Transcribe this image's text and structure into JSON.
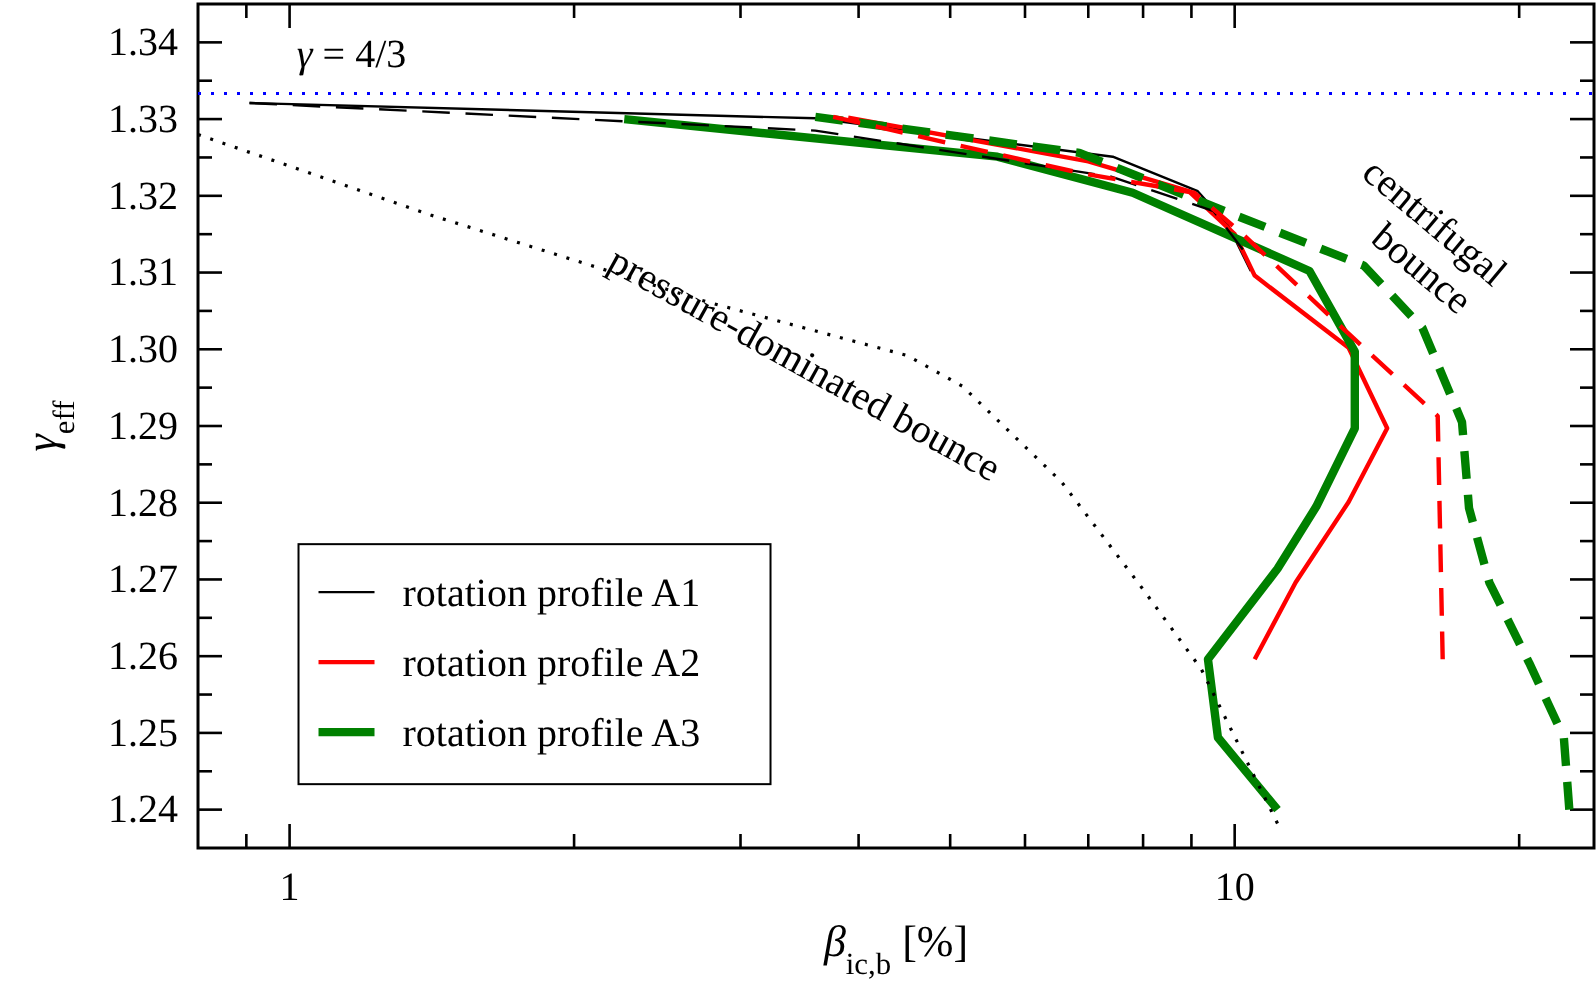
{
  "chart_data": {
    "type": "line",
    "xlabel": "β$_{ic,b}$ [%]",
    "ylabel": "γ$_{eff}$",
    "log": "x",
    "grid": false,
    "legend": "bottom left",
    "marker": "none",
    "xlim": [
      0.8,
      24
    ],
    "ylim": [
      1.235,
      1.345
    ],
    "xticks": [
      {
        "value": 0.9,
        "label": null
      },
      1,
      {
        "value": 2,
        "label": null
      },
      {
        "value": 3,
        "label": null
      },
      {
        "value": 4,
        "label": null
      },
      {
        "value": 5,
        "label": null
      },
      {
        "value": 6,
        "label": null
      },
      {
        "value": 7,
        "label": null
      },
      {
        "value": 8,
        "label": null
      },
      {
        "value": 9,
        "label": null
      },
      10,
      {
        "value": 20,
        "label": null
      }
    ],
    "yticks": [
      1.24,
      {
        "value": 1.245,
        "label": null
      },
      1.25,
      {
        "value": 1.255,
        "label": null
      },
      1.26,
      {
        "value": 1.265,
        "label": null
      },
      1.27,
      {
        "value": 1.275,
        "label": null
      },
      1.28,
      {
        "value": 1.285,
        "label": null
      },
      1.29,
      {
        "value": 1.295,
        "label": null
      },
      "1.30",
      {
        "value": 1.305,
        "label": null
      },
      1.31,
      {
        "value": 1.315,
        "label": null
      },
      1.32,
      {
        "value": 1.325,
        "label": null
      },
      1.33,
      {
        "value": 1.335,
        "label": null
      },
      1.34
    ],
    "ref_lines": [
      {
        "axis": "y",
        "value": 1.3333333,
        "color": "#0000ff",
        "line_style": "dotted"
      }
    ],
    "annotations": [
      "γ = 4/3",
      "pressure-dominated bounce",
      "centrifugal bounce"
    ],
    "series": [
      {
        "name": "rotation profile A1",
        "color": "#000000",
        "line_style": "solid",
        "x": [
          0.907,
          3.6,
          7.43,
          9.14,
          9.84,
          10.4
        ],
        "values": [
          1.3321,
          1.3301,
          1.3251,
          1.3206,
          1.3162,
          1.3102
        ]
      },
      {
        "name": "rotation profile A2",
        "color": "#ff0000",
        "line_style": "solid",
        "x": [
          3.9,
          7.0,
          8.94,
          10.0,
          10.5,
          13.2,
          14.5,
          13.2,
          11.6,
          10.5
        ],
        "values": [
          1.3302,
          1.3245,
          1.3206,
          1.315,
          1.3096,
          1.3002,
          1.2897,
          1.2801,
          1.2696,
          1.2596
        ]
      },
      {
        "name": "rotation profile A3",
        "color": "#008000",
        "line_style": "solid",
        "x": [
          2.26,
          5.61,
          7.8,
          12.0,
          13.4,
          13.4,
          12.2,
          11.1,
          9.37,
          9.6,
          11.1
        ],
        "values": [
          1.33,
          1.3251,
          1.3204,
          1.3102,
          1.2997,
          1.2897,
          1.2795,
          1.2714,
          1.2596,
          1.2494,
          1.24
        ]
      },
      {
        "color": "#008000",
        "line_style": "dashed",
        "x": [
          3.6,
          6.85,
          10.0,
          13.7,
          15.8,
          17.4,
          17.7,
          18.6,
          20.5,
          22.3,
          22.6
        ],
        "values": [
          1.3303,
          1.3256,
          1.3175,
          1.3109,
          1.3028,
          1.2905,
          1.2793,
          1.2696,
          1.2591,
          1.2494,
          1.24
        ]
      },
      {
        "color": "#000000",
        "line_style": "dashed",
        "x": [
          0.907,
          3.6,
          7.4,
          9.5,
          10.2
        ],
        "values": [
          1.3321,
          1.3285,
          1.3225,
          1.318,
          1.313
        ]
      },
      {
        "color": "#ff0000",
        "line_style": "dashed",
        "x": [
          3.76,
          6.85,
          9.06,
          10.2,
          13.0,
          16.4,
          16.6
        ],
        "values": [
          1.3303,
          1.323,
          1.3204,
          1.315,
          1.3028,
          1.2913,
          1.2596
        ]
      },
      {
        "color": "#000000",
        "line_style": "dotted",
        "x": [
          0.8,
          1.41,
          2.76,
          4.5,
          5.15,
          6.56,
          7.99,
          9.22,
          11.1
        ],
        "values": [
          1.328,
          1.3175,
          1.3062,
          1.2992,
          1.2952,
          1.2827,
          1.2688,
          1.2583,
          1.2382
        ]
      }
    ]
  }
}
